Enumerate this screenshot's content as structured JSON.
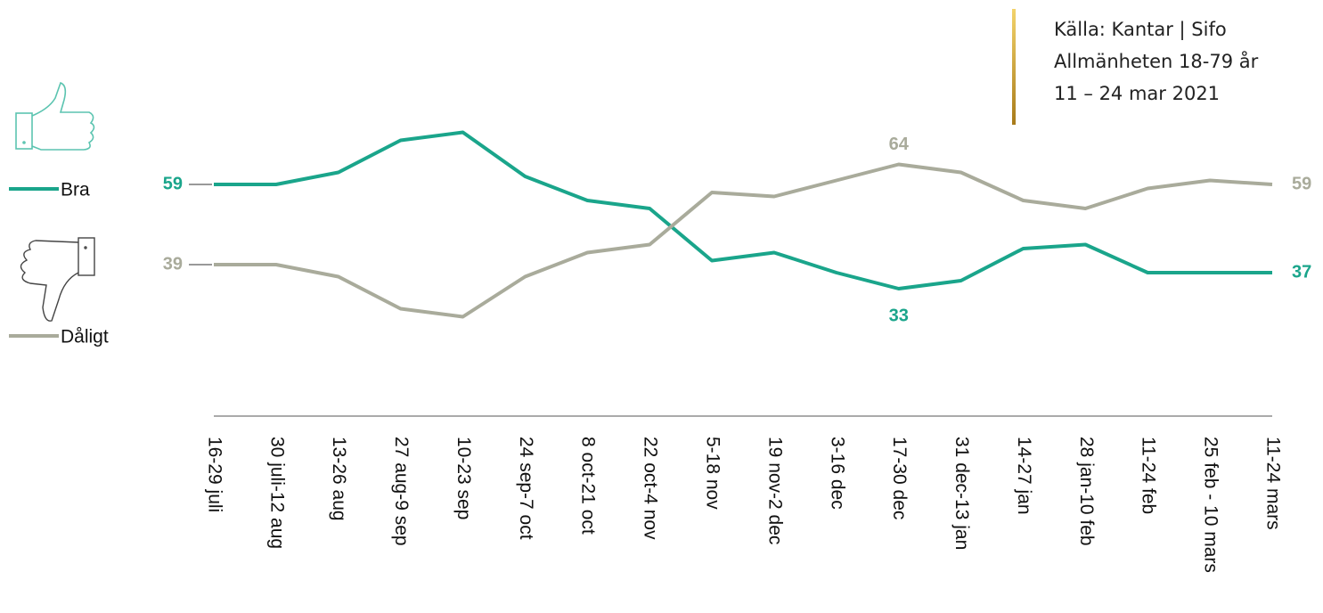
{
  "chart_data": {
    "type": "line",
    "source": [
      "Källa: Kantar | Sifo",
      "Allmänheten 18-79 år",
      "11 – 24 mar 2021"
    ],
    "categories": [
      "16-29 juli",
      "30 juli-12 aug",
      "13-26 aug",
      "27 aug-9 sep",
      "10-23 sep",
      "24 sep-7 oct",
      "8 oct-21 oct",
      "22 oct-4 nov",
      "5-18 nov",
      "19 nov-2 dec",
      "3-16 dec",
      "17-30 dec",
      "31 dec-13 jan",
      "14-27 jan",
      "28 jan-10 feb",
      "11-24 feb",
      "25 feb - 10 mars",
      "11-24 mars"
    ],
    "series": [
      {
        "name": "Bra",
        "color": "#1aa58b",
        "values": [
          59,
          59,
          62,
          70,
          72,
          61,
          55,
          53,
          40,
          42,
          37,
          33,
          35,
          43,
          44,
          37,
          37,
          37
        ],
        "value_labels": [
          "59",
          null,
          null,
          null,
          null,
          null,
          null,
          null,
          null,
          null,
          null,
          "33",
          null,
          null,
          null,
          null,
          null,
          "37"
        ]
      },
      {
        "name": "Dåligt",
        "color": "#a9ab9b",
        "values": [
          39,
          39,
          36,
          28,
          26,
          36,
          42,
          44,
          57,
          56,
          60,
          64,
          62,
          55,
          53,
          58,
          60,
          59
        ],
        "value_labels": [
          "39",
          null,
          null,
          null,
          null,
          null,
          null,
          null,
          null,
          null,
          null,
          "64",
          null,
          null,
          null,
          null,
          null,
          "59"
        ]
      }
    ],
    "ylim": [
      20,
      80
    ]
  }
}
